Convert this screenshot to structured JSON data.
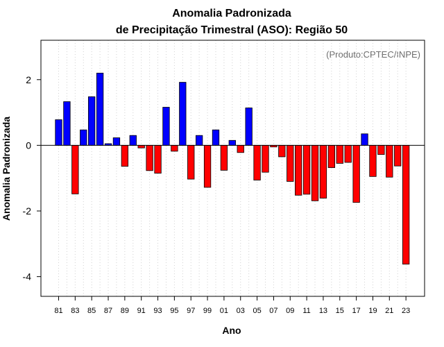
{
  "chart_data": {
    "type": "bar",
    "title": "Anomalia Padronizada",
    "subtitle": "de Precipitação Trimestral (ASO): Região 50",
    "xlabel": "Ano",
    "ylabel": "Anomalia Padronizada",
    "credit": "(Produto:CPTEC/INPE)",
    "ylim": [
      -4.6,
      3.2
    ],
    "yticks": [
      -4,
      -2,
      0,
      2
    ],
    "x": [
      1981,
      1982,
      1983,
      1984,
      1985,
      1986,
      1987,
      1988,
      1989,
      1990,
      1991,
      1992,
      1993,
      1994,
      1995,
      1996,
      1997,
      1998,
      1999,
      2000,
      2001,
      2002,
      2003,
      2004,
      2005,
      2006,
      2007,
      2008,
      2009,
      2010,
      2011,
      2012,
      2013,
      2014,
      2015,
      2016,
      2017,
      2018,
      2019,
      2020,
      2021,
      2022,
      2023
    ],
    "values": [
      0.78,
      1.33,
      -1.48,
      0.47,
      1.48,
      2.2,
      0.05,
      0.23,
      -0.64,
      0.3,
      -0.08,
      -0.77,
      -0.85,
      1.16,
      -0.18,
      1.92,
      -1.03,
      0.3,
      -1.28,
      0.47,
      -0.76,
      0.15,
      -0.22,
      1.14,
      -1.06,
      -0.82,
      -0.05,
      -0.35,
      -1.1,
      -1.52,
      -1.49,
      -1.69,
      -1.61,
      -0.68,
      -0.55,
      -0.52,
      -1.74,
      0.35,
      -0.95,
      -0.28,
      -0.97,
      -0.63,
      -3.62
    ],
    "xtick_labels": [
      "81",
      "83",
      "85",
      "87",
      "89",
      "91",
      "93",
      "95",
      "97",
      "99",
      "01",
      "03",
      "05",
      "07",
      "09",
      "11",
      "13",
      "15",
      "17",
      "19",
      "21",
      "23"
    ],
    "positive_color": "#0000ff",
    "negative_color": "#ff0000",
    "grid": true
  }
}
